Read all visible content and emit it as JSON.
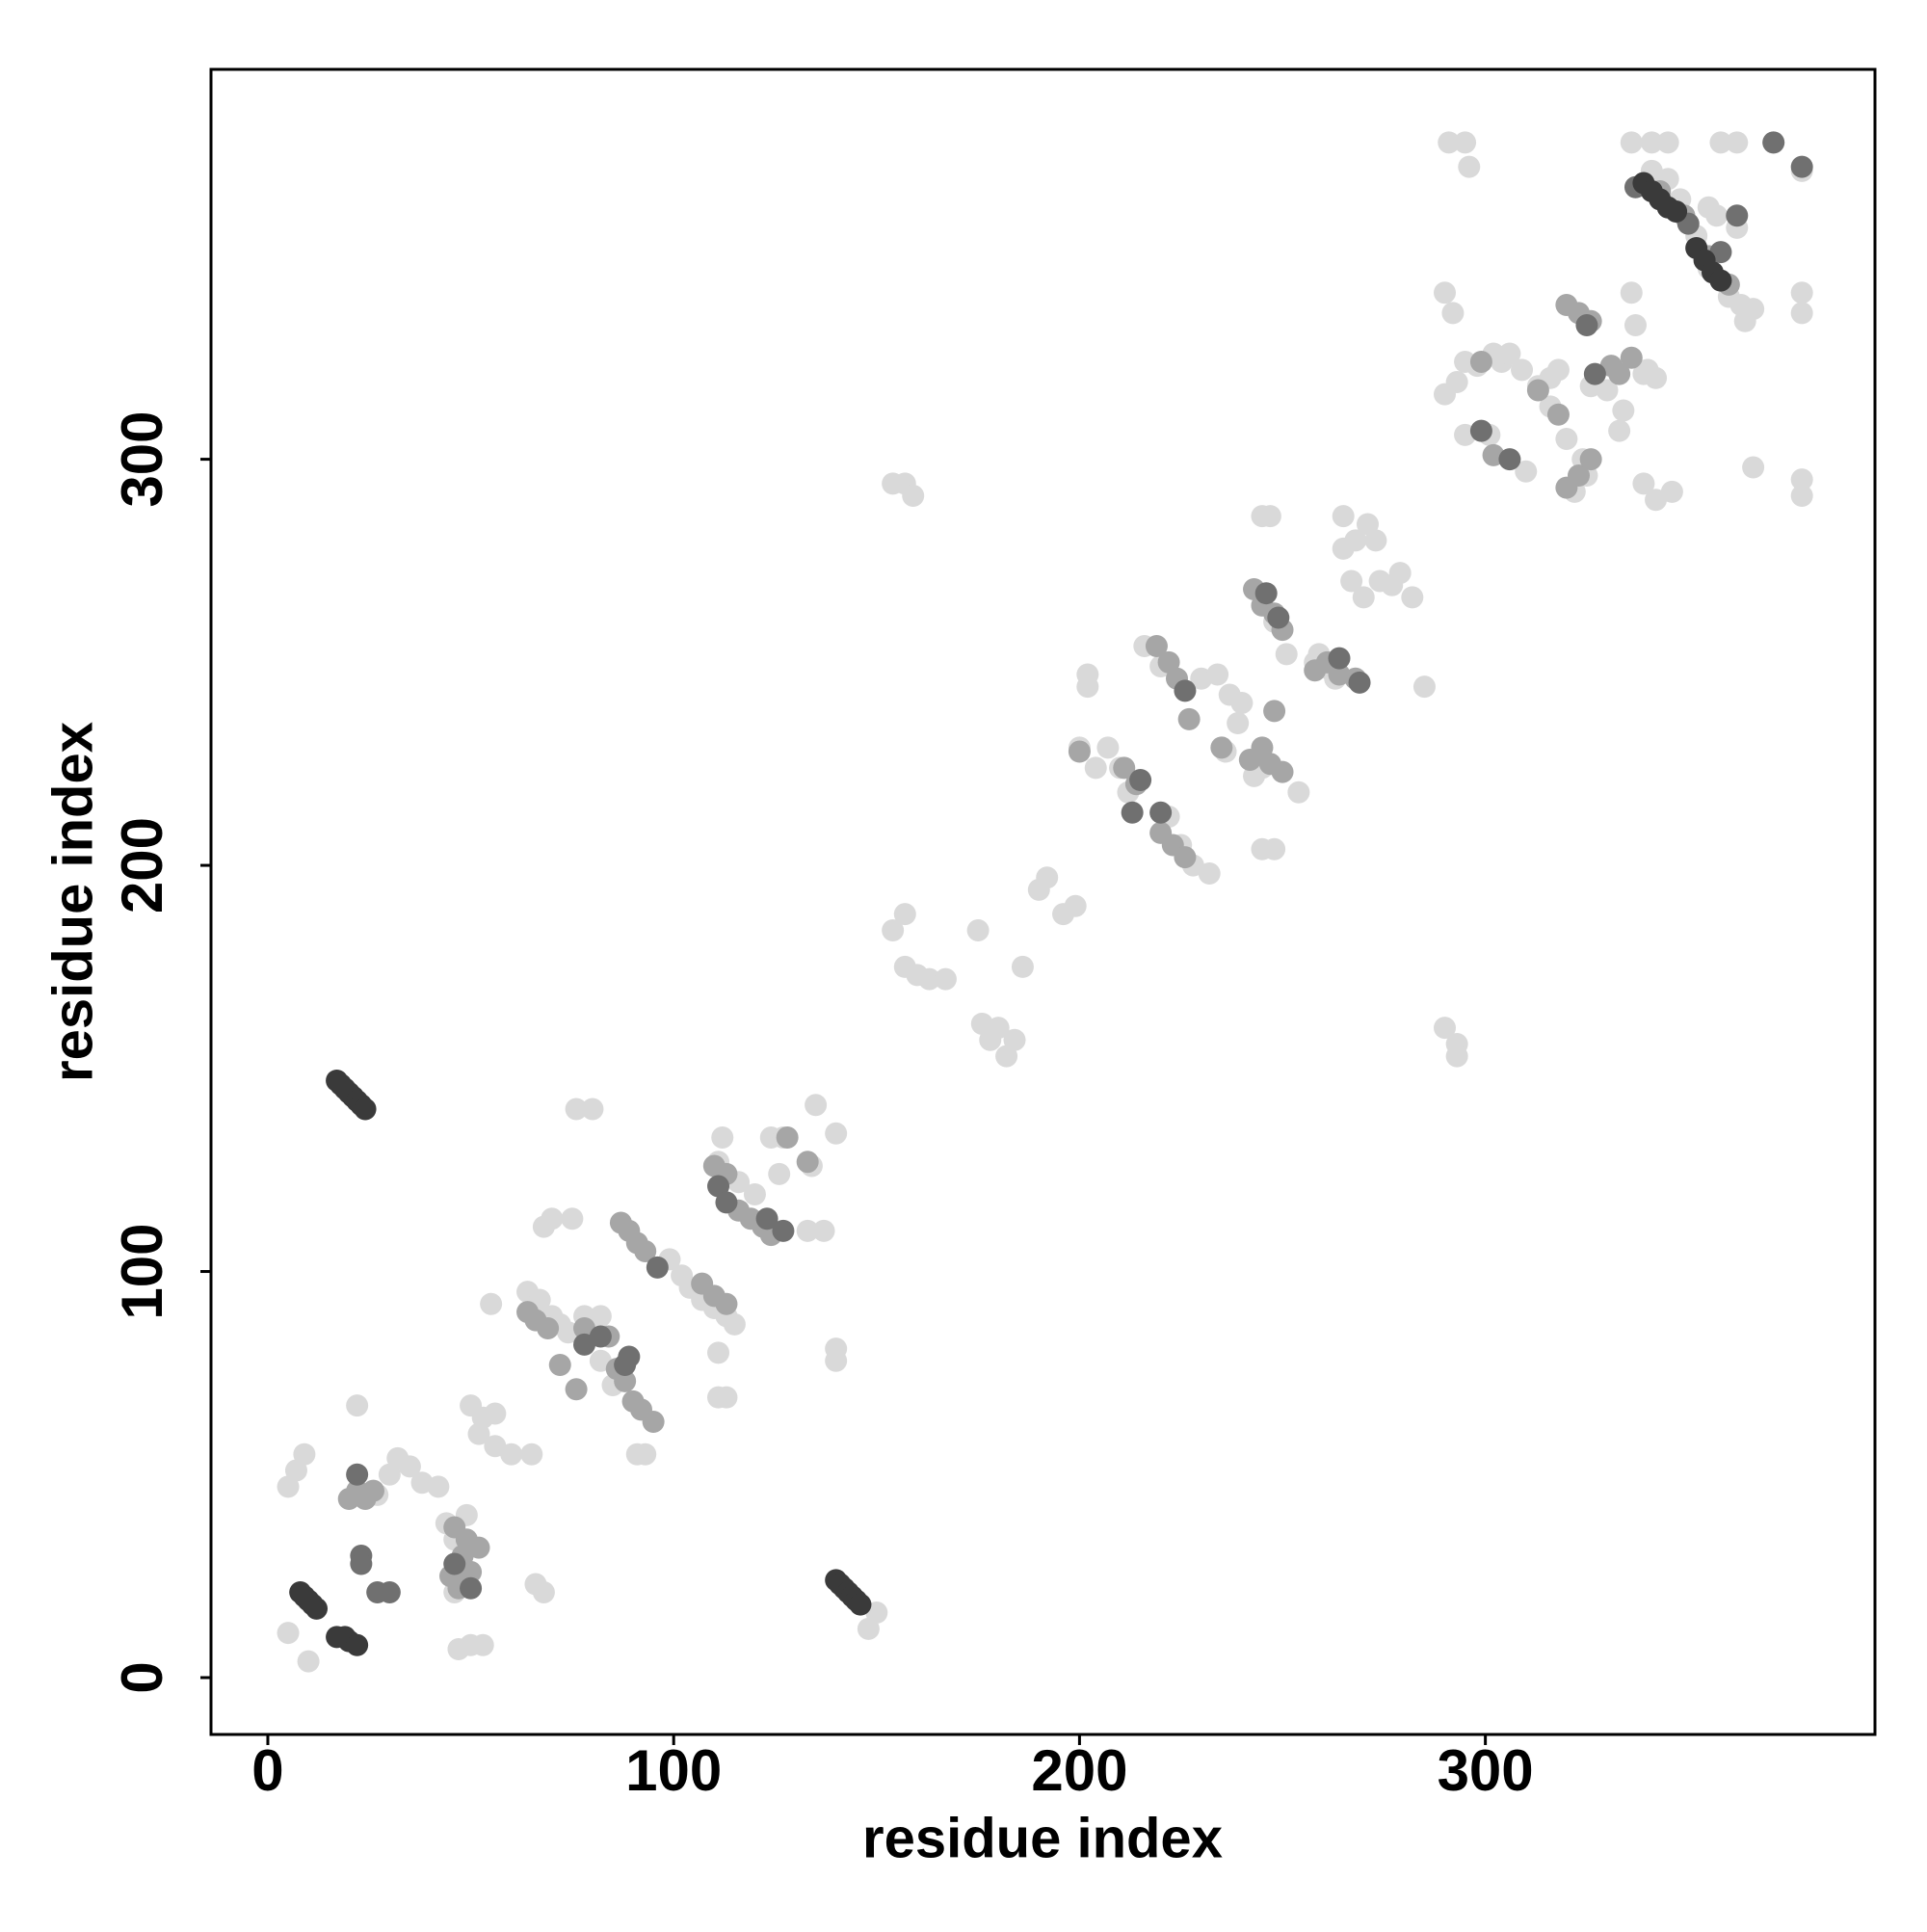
{
  "chart_data": {
    "type": "scatter",
    "xlabel": "residue index",
    "ylabel": "residue index",
    "xlim": [
      -14,
      396
    ],
    "ylim": [
      -14,
      396
    ],
    "xticks": [
      0,
      100,
      200,
      300
    ],
    "yticks": [
      0,
      100,
      200,
      300
    ],
    "series": [
      {
        "color": "#d9d9d9",
        "x": [
          5,
          7,
          9,
          5,
          10,
          22,
          27,
          30,
          32,
          35,
          38,
          42,
          44,
          46,
          49,
          46,
          47,
          50,
          53,
          50,
          53,
          56,
          52,
          56,
          60,
          65,
          66,
          68,
          55,
          64,
          67,
          70,
          72,
          74,
          70,
          68,
          75,
          76,
          80,
          78,
          82,
          82,
          85,
          91,
          93,
          99,
          102,
          104,
          107,
          110,
          113,
          115,
          111,
          113,
          111,
          111,
          112,
          116,
          120,
          124,
          127,
          126,
          133,
          134,
          137,
          135,
          140,
          140,
          140,
          150,
          148,
          154,
          157,
          157,
          160,
          163,
          167,
          154,
          157,
          159,
          175,
          176,
          178,
          180,
          182,
          184,
          186,
          190,
          192,
          196,
          199,
          200,
          202,
          202,
          204,
          207,
          210,
          212,
          216,
          220,
          222,
          225,
          228,
          232,
          230,
          234,
          237,
          236,
          239,
          240,
          243,
          245,
          245,
          248,
          245,
          247,
          248,
          251,
          254,
          258,
          263,
          265,
          265,
          267,
          268,
          271,
          270,
          273,
          274,
          277,
          279,
          282,
          285,
          290,
          292,
          291,
          295,
          296,
          293,
          290,
          295,
          295,
          298,
          302,
          304,
          306,
          309,
          313,
          316,
          318,
          290,
          293,
          293,
          320,
          322,
          325,
          326,
          330,
          333,
          334,
          336,
          339,
          337,
          340,
          342,
          336,
          341,
          345,
          339,
          342,
          346,
          341,
          345,
          348,
          355,
          357,
          360,
          363,
          366,
          352,
          355,
          358,
          362,
          366,
          378,
          378,
          378,
          378,
          378,
          371,
          362,
          364,
          310,
          301,
          316,
          324,
          259,
          262
        ],
        "values": [
          47,
          51,
          55,
          11,
          4,
          67,
          45,
          50,
          54,
          52,
          48,
          47,
          38,
          34,
          40,
          21,
          7,
          8,
          8,
          67,
          64,
          65,
          60,
          57,
          55,
          55,
          23,
          21,
          92,
          95,
          93,
          89,
          87,
          85,
          113,
          111,
          113,
          140,
          140,
          89,
          89,
          78,
          72,
          55,
          55,
          103,
          99,
          96,
          93,
          91,
          89,
          87,
          69,
          69,
          80,
          127,
          133,
          122,
          119,
          133,
          133,
          124,
          110,
          126,
          110,
          141,
          134,
          78,
          81,
          16,
          12,
          184,
          188,
          175,
          173,
          172,
          172,
          294,
          294,
          291,
          184,
          161,
          157,
          160,
          153,
          157,
          175,
          194,
          197,
          188,
          190,
          229,
          244,
          247,
          224,
          229,
          224,
          218,
          254,
          249,
          212,
          205,
          200,
          198,
          246,
          247,
          242,
          228,
          235,
          240,
          222,
          224,
          204,
          204,
          286,
          286,
          260,
          252,
          218,
          250,
          246,
          286,
          278,
          270,
          280,
          284,
          266,
          280,
          270,
          269,
          272,
          266,
          244,
          341,
          336,
          378,
          378,
          372,
          319,
          316,
          306,
          324,
          323,
          326,
          324,
          326,
          322,
          318,
          320,
          322,
          160,
          156,
          153,
          305,
          292,
          296,
          318,
          317,
          307,
          312,
          341,
          321,
          333,
          322,
          320,
          378,
          378,
          378,
          294,
          290,
          292,
          371,
          369,
          364,
          362,
          360,
          340,
          338,
          337,
          355,
          347,
          378,
          378,
          298,
          371,
          341,
          336,
          295,
          291,
          378,
          357,
          334,
          297,
          306,
          313,
          300,
          252,
          248
        ]
      },
      {
        "color": "#a6a6a6",
        "x": [
          20,
          22,
          24,
          26,
          46,
          48,
          50,
          45,
          47,
          49,
          52,
          64,
          66,
          69,
          72,
          76,
          78,
          84,
          86,
          88,
          90,
          92,
          95,
          87,
          89,
          91,
          93,
          107,
          110,
          113,
          110,
          113,
          116,
          119,
          122,
          124,
          128,
          133,
          211,
          214,
          219,
          222,
          224,
          220,
          223,
          226,
          227,
          235,
          243,
          245,
          248,
          250,
          242,
          245,
          247,
          250,
          258,
          261,
          264,
          268,
          313,
          318,
          320,
          323,
          326,
          320,
          323,
          326,
          331,
          333,
          336,
          343,
          349,
          355,
          360,
          299,
          302,
          248,
          200
        ],
        "values": [
          44,
          46,
          44,
          46,
          37,
          30,
          26,
          25,
          22,
          34,
          32,
          90,
          88,
          86,
          77,
          71,
          86,
          84,
          76,
          73,
          68,
          66,
          63,
          112,
          110,
          107,
          105,
          97,
          94,
          92,
          126,
          124,
          115,
          113,
          111,
          109,
          133,
          127,
          224,
          220,
          254,
          250,
          246,
          208,
          205,
          202,
          236,
          229,
          268,
          264,
          262,
          258,
          226,
          229,
          225,
          223,
          248,
          250,
          247,
          246,
          317,
          311,
          293,
          296,
          300,
          338,
          336,
          334,
          323,
          321,
          325,
          366,
          360,
          350,
          343,
          324,
          301,
          238,
          228
        ]
      },
      {
        "color": "#707070",
        "x": [
          23,
          23,
          27,
          30,
          46,
          50,
          78,
          82,
          88,
          89,
          96,
          111,
          113,
          123,
          127,
          213,
          215,
          220,
          226,
          246,
          249,
          264,
          269,
          299,
          306,
          325,
          327,
          358,
          362,
          371,
          378,
          22,
          337,
          350
        ],
        "values": [
          30,
          28,
          21,
          21,
          28,
          22,
          82,
          84,
          77,
          79,
          101,
          121,
          117,
          113,
          110,
          213,
          221,
          213,
          243,
          267,
          261,
          251,
          245,
          307,
          300,
          333,
          321,
          351,
          360,
          378,
          372,
          50,
          367,
          358
        ]
      },
      {
        "color": "#3a3a3a",
        "x": [
          8,
          9,
          10,
          11,
          12,
          17,
          19,
          20,
          22,
          17,
          18,
          19,
          20,
          21,
          22,
          23,
          24,
          140,
          141,
          142,
          143,
          144,
          145,
          146,
          339,
          341,
          343,
          345,
          347,
          352,
          354,
          356,
          358
        ],
        "values": [
          21,
          20,
          19,
          18,
          17,
          10,
          10,
          9,
          8,
          147,
          146,
          145,
          144,
          143,
          142,
          141,
          140,
          24,
          23,
          22,
          21,
          20,
          19,
          18,
          368,
          366,
          364,
          362,
          361,
          352,
          349,
          346,
          344
        ]
      }
    ]
  }
}
